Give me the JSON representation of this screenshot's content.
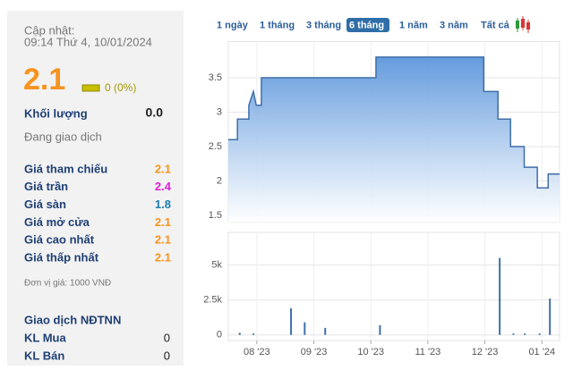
{
  "sidebar": {
    "update_label": "Cập nhật:",
    "update_time": "09:14 Thứ 4, 10/01/2024",
    "price": "2.1",
    "change": "0 (0%)",
    "volume_label": "Khối lượng",
    "volume": "0.0",
    "status": "Đang giao dịch",
    "rows": [
      {
        "label": "Giá tham chiếu",
        "value": "2.1",
        "color": "#f7931e"
      },
      {
        "label": "Giá trần",
        "value": "2.4",
        "color": "#e01fd8"
      },
      {
        "label": "Giá sàn",
        "value": "1.8",
        "color": "#1b7fb5"
      },
      {
        "label": "Giá mở cửa",
        "value": "2.1",
        "color": "#f7931e"
      },
      {
        "label": "Giá cao nhất",
        "value": "2.1",
        "color": "#f7931e"
      },
      {
        "label": "Giá thấp nhất",
        "value": "2.1",
        "color": "#f7931e"
      }
    ],
    "unit_note": "Đơn vị giá: 1000 VNĐ",
    "foreign": {
      "title": "Giao dịch NĐTNN",
      "rows": [
        {
          "label": "KL Mua",
          "value": "0"
        },
        {
          "label": "KL Bán",
          "value": "0"
        }
      ]
    }
  },
  "range_buttons": {
    "items": [
      "1 ngày",
      "1 tháng",
      "3 tháng",
      "6 tháng",
      "1 năm",
      "3 năm",
      "Tất cả"
    ],
    "active": 3
  },
  "chart_data": [
    {
      "type": "area",
      "color": "#3f6fa8",
      "x": [
        7.5,
        7.66,
        7.66,
        7.86,
        7.86,
        7.94,
        7.99,
        8.08,
        8.08,
        10.09,
        10.09,
        11.98,
        11.98,
        12.23,
        12.23,
        12.45,
        12.45,
        12.69,
        12.69,
        12.92,
        12.92,
        13.11,
        13.11,
        13.31
      ],
      "values": [
        2.6,
        2.6,
        2.9,
        2.9,
        3.1,
        3.3,
        3.1,
        3.1,
        3.5,
        3.5,
        3.8,
        3.8,
        3.3,
        3.3,
        2.9,
        2.9,
        2.5,
        2.5,
        2.2,
        2.2,
        1.9,
        1.9,
        2.1,
        2.1
      ],
      "xlim": [
        7.5,
        13.31
      ],
      "ylim": [
        1.4,
        4.0
      ],
      "yticks": [
        1.5,
        2,
        2.5,
        3,
        3.5
      ],
      "xticks": [
        {
          "value": 8,
          "label": "08 '23"
        },
        {
          "value": 9,
          "label": "09 '23"
        },
        {
          "value": 10,
          "label": "10 '23"
        },
        {
          "value": 11,
          "label": "11 '23"
        },
        {
          "value": 12,
          "label": "12 '23"
        },
        {
          "value": 13,
          "label": "01 '24"
        }
      ],
      "grid": true
    },
    {
      "type": "bar",
      "color": "#3f6fa8",
      "x": [
        7.7,
        7.94,
        8.6,
        8.84,
        9.2,
        10.16,
        12.26,
        12.5,
        12.7,
        12.96,
        13.14
      ],
      "values": [
        150,
        100,
        1900,
        900,
        500,
        700,
        5500,
        100,
        100,
        100,
        2600
      ],
      "xlim": [
        7.5,
        13.31
      ],
      "ylim": [
        -400,
        7200
      ],
      "yticks": [
        0,
        {
          "value": 2500,
          "label": "2.5k"
        },
        {
          "value": 5000,
          "label": "5k"
        }
      ],
      "xticks": [
        {
          "value": 8,
          "label": "08 '23"
        },
        {
          "value": 9,
          "label": "09 '23"
        },
        {
          "value": 10,
          "label": "10 '23"
        },
        {
          "value": 11,
          "label": "11 '23"
        },
        {
          "value": 12,
          "label": "12 '23"
        },
        {
          "value": 13,
          "label": "01 '24"
        }
      ],
      "grid": true
    }
  ]
}
